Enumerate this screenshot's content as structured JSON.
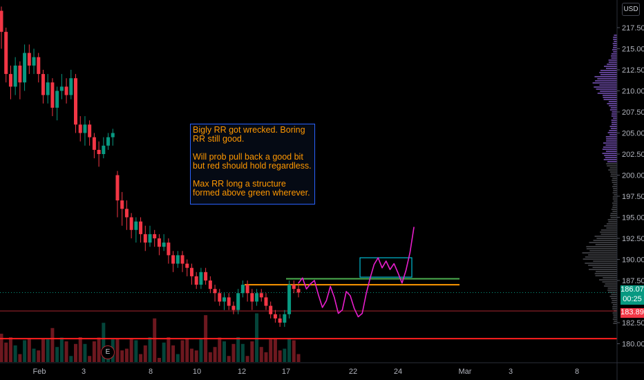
{
  "currency": "USD",
  "price_axis": {
    "ticks": [
      "217.50",
      "215.00",
      "212.50",
      "210.00",
      "207.50",
      "205.00",
      "202.50",
      "200.00",
      "197.50",
      "195.00",
      "192.50",
      "190.00",
      "187.50",
      "182.50",
      "180.00"
    ],
    "current_price": "186.07",
    "countdown": "00:25",
    "red_price": "183.89"
  },
  "time_axis": {
    "labels": [
      "Feb",
      "3",
      "8",
      "10",
      "12",
      "17",
      "22",
      "24",
      "Mar",
      "3",
      "8"
    ]
  },
  "annotation": {
    "lines": [
      "Bigly RR got wrecked. Boring RR still good.",
      "Will prob pull back a good bit but red should hold regardless.",
      "Max RR long a structure formed above green wherever."
    ]
  },
  "earnings_marker": "E",
  "colors": {
    "background": "#000000",
    "up": "#089981",
    "down": "#f23645",
    "annotation_text": "#ff9800",
    "annotation_border": "#2962ff",
    "orange_level": "#ff9800",
    "green_level": "#4caf50",
    "red_level": "#ff1f1f",
    "projection": "#e91ecd",
    "target_box": "#00bcd4",
    "volume_profile": "#7e57c2"
  },
  "chart_data": {
    "type": "candlestick",
    "y_range": [
      177.6,
      220.2
    ],
    "levels": [
      {
        "name": "orange",
        "price": 187.0
      },
      {
        "name": "green",
        "price": 187.7
      },
      {
        "name": "red",
        "price": 180.6
      },
      {
        "name": "last",
        "price": 186.07
      },
      {
        "name": "prior",
        "price": 183.89
      }
    ],
    "target_box_prices": [
      187.9,
      190.2
    ],
    "candles": [
      [
        219.5,
        217,
        220,
        215
      ],
      [
        217,
        212,
        217.5,
        211
      ],
      [
        212,
        210.5,
        213,
        209
      ],
      [
        210.5,
        213,
        214,
        209.5
      ],
      [
        213,
        211,
        213.5,
        209
      ],
      [
        211,
        214.5,
        215.5,
        210
      ],
      [
        214.5,
        213,
        215.5,
        212
      ],
      [
        213,
        214,
        215,
        212
      ],
      [
        214,
        212,
        214.5,
        211
      ],
      [
        212,
        209.5,
        212.5,
        208.5
      ],
      [
        209.5,
        211,
        212,
        208.5
      ],
      [
        211,
        208,
        211.5,
        207
      ],
      [
        208,
        210,
        210.5,
        206.5
      ],
      [
        210,
        210.5,
        212,
        209
      ],
      [
        210.5,
        209.5,
        211.5,
        208.5
      ],
      [
        209.5,
        211.5,
        212.5,
        209
      ],
      [
        211.5,
        206,
        212,
        205
      ],
      [
        206,
        205,
        207,
        204
      ],
      [
        205,
        206,
        207,
        203.5
      ],
      [
        206,
        204.5,
        206.5,
        203.5
      ],
      [
        204.5,
        203,
        205,
        202
      ],
      [
        203,
        202.5,
        204,
        201
      ],
      [
        202.5,
        203.5,
        204.5,
        202
      ],
      [
        203.5,
        204.5,
        205,
        203
      ],
      [
        204.5,
        205,
        205.5,
        203.5
      ],
      [
        200,
        197,
        200.5,
        195
      ],
      [
        197,
        196,
        198,
        194
      ],
      [
        196,
        195,
        197,
        193.5
      ],
      [
        195,
        193.5,
        195.5,
        192.5
      ],
      [
        193.5,
        194.5,
        195,
        192
      ],
      [
        194.5,
        193,
        195,
        192
      ],
      [
        193,
        192,
        194,
        191
      ],
      [
        192,
        193,
        194,
        191.5
      ],
      [
        193,
        192.5,
        193.5,
        191.5
      ],
      [
        192.5,
        191.5,
        193,
        190.5
      ],
      [
        191.5,
        192,
        193,
        191
      ],
      [
        192,
        190.5,
        192.5,
        189.5
      ],
      [
        190.5,
        189.5,
        191,
        188.5
      ],
      [
        189.5,
        190.5,
        191,
        189
      ],
      [
        190.5,
        189.5,
        191,
        188.5
      ],
      [
        189.5,
        189,
        190,
        188
      ],
      [
        189,
        188,
        189.5,
        187
      ],
      [
        188,
        187,
        188.5,
        186.5
      ],
      [
        187,
        188.5,
        189,
        186.5
      ],
      [
        188.5,
        187.5,
        189,
        187
      ],
      [
        187.5,
        186.5,
        188,
        186
      ],
      [
        186.5,
        186,
        187,
        185
      ],
      [
        186,
        185,
        186.5,
        184.5
      ],
      [
        185,
        185.5,
        186,
        184
      ],
      [
        185.5,
        184.5,
        186,
        184
      ],
      [
        184.5,
        184,
        185,
        183.5
      ],
      [
        184,
        186,
        186.5,
        183.5
      ],
      [
        186,
        187,
        187.5,
        185.5
      ],
      [
        187,
        186,
        187.5,
        185
      ],
      [
        186,
        185,
        186.5,
        184
      ],
      [
        185,
        186,
        186.5,
        184.5
      ],
      [
        186,
        185.5,
        186.5,
        185
      ],
      [
        185.5,
        184.5,
        186,
        184
      ],
      [
        184.5,
        183.5,
        185,
        183
      ],
      [
        183.5,
        183,
        184,
        182.5
      ],
      [
        183,
        182.5,
        183.5,
        182
      ],
      [
        182.5,
        183.5,
        184,
        182
      ],
      [
        183.5,
        187,
        187.5,
        183
      ],
      [
        187,
        186.5,
        187.5,
        186
      ],
      [
        186.5,
        186.07,
        187,
        185.5
      ]
    ],
    "projection": [
      [
        188.5,
        187.2
      ],
      [
        188.8,
        187.8
      ],
      [
        189.1,
        186.5
      ],
      [
        189.4,
        187.1
      ],
      [
        189.7,
        187.5
      ],
      [
        190.0,
        185.8
      ],
      [
        190.3,
        184.3
      ],
      [
        190.6,
        185.1
      ],
      [
        190.9,
        186.8
      ],
      [
        191.2,
        185.5
      ],
      [
        191.5,
        183.6
      ],
      [
        191.8,
        184.0
      ],
      [
        192.1,
        186.2
      ],
      [
        192.4,
        185.7
      ],
      [
        192.7,
        184.2
      ],
      [
        193.0,
        183.2
      ],
      [
        193.3,
        183.6
      ],
      [
        193.6,
        185.9
      ],
      [
        193.9,
        187.8
      ],
      [
        194.2,
        189.4
      ],
      [
        194.5,
        190.2
      ],
      [
        194.8,
        189.0
      ],
      [
        195.1,
        189.8
      ],
      [
        195.4,
        188.8
      ],
      [
        195.7,
        189.5
      ],
      [
        196.0,
        188.4
      ],
      [
        196.3,
        187.2
      ],
      [
        196.6,
        188.7
      ],
      [
        196.9,
        190.8
      ],
      [
        197.2,
        193.8
      ]
    ]
  }
}
